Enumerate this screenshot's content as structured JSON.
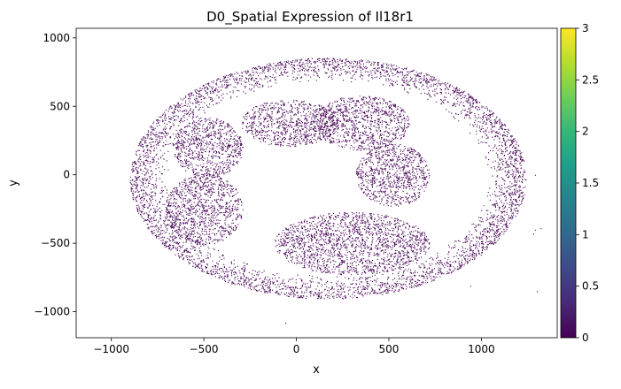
{
  "chart_data": {
    "type": "scatter",
    "title": "D0_Spatial Expression of Il18r1",
    "xlabel": "x",
    "ylabel": "y",
    "xlim": [
      -1190,
      1410
    ],
    "ylim": [
      -1190,
      1070
    ],
    "xticks": [
      -1000,
      -500,
      0,
      500,
      1000
    ],
    "xtick_labels": [
      "−1000",
      "−500",
      "0",
      "500",
      "1000"
    ],
    "yticks": [
      -1000,
      -500,
      0,
      500,
      1000
    ],
    "ytick_labels": [
      "−1000",
      "−500",
      "0",
      "500",
      "1000"
    ],
    "grid": false,
    "point_color": "#440154",
    "colorbar": {
      "colormap": "viridis",
      "min": 0,
      "max": 3,
      "ticks": [
        0,
        0.5,
        1,
        1.5,
        2,
        2.5,
        3
      ],
      "tick_labels": [
        "0",
        "0.5",
        "1",
        "1.5",
        "2",
        "2.5",
        "3"
      ],
      "colors": [
        "#440154",
        "#482878",
        "#3e4989",
        "#31688e",
        "#26828e",
        "#1f9e89",
        "#35b779",
        "#6ece58",
        "#b5de2b",
        "#fde725"
      ]
    },
    "tissue_regions": [
      {
        "name": "outer-ring",
        "center": [
          170,
          -25
        ],
        "rx": 1070,
        "ry": 880,
        "inner_rx": 860,
        "inner_ry": 690
      },
      {
        "name": "upper-left-lobe",
        "center": [
          -480,
          200
        ],
        "rx": 190,
        "ry": 220
      },
      {
        "name": "lower-left-lobe",
        "center": [
          -500,
          -250
        ],
        "rx": 210,
        "ry": 260
      },
      {
        "name": "upper-center-lobe",
        "center": [
          -40,
          380
        ],
        "rx": 260,
        "ry": 170
      },
      {
        "name": "upper-right-lobe",
        "center": [
          350,
          380
        ],
        "rx": 260,
        "ry": 200
      },
      {
        "name": "right-lobe",
        "center": [
          520,
          0
        ],
        "rx": 200,
        "ry": 230
      },
      {
        "name": "bottom-lobe",
        "center": [
          300,
          -500
        ],
        "rx": 420,
        "ry": 230
      }
    ],
    "outlier_points": [
      [
        1290,
        -400
      ],
      [
        1280,
        -430
      ],
      [
        1300,
        -850
      ],
      [
        1290,
        0
      ],
      [
        -60,
        -1080
      ],
      [
        940,
        -810
      ],
      [
        1320,
        -390
      ]
    ]
  }
}
